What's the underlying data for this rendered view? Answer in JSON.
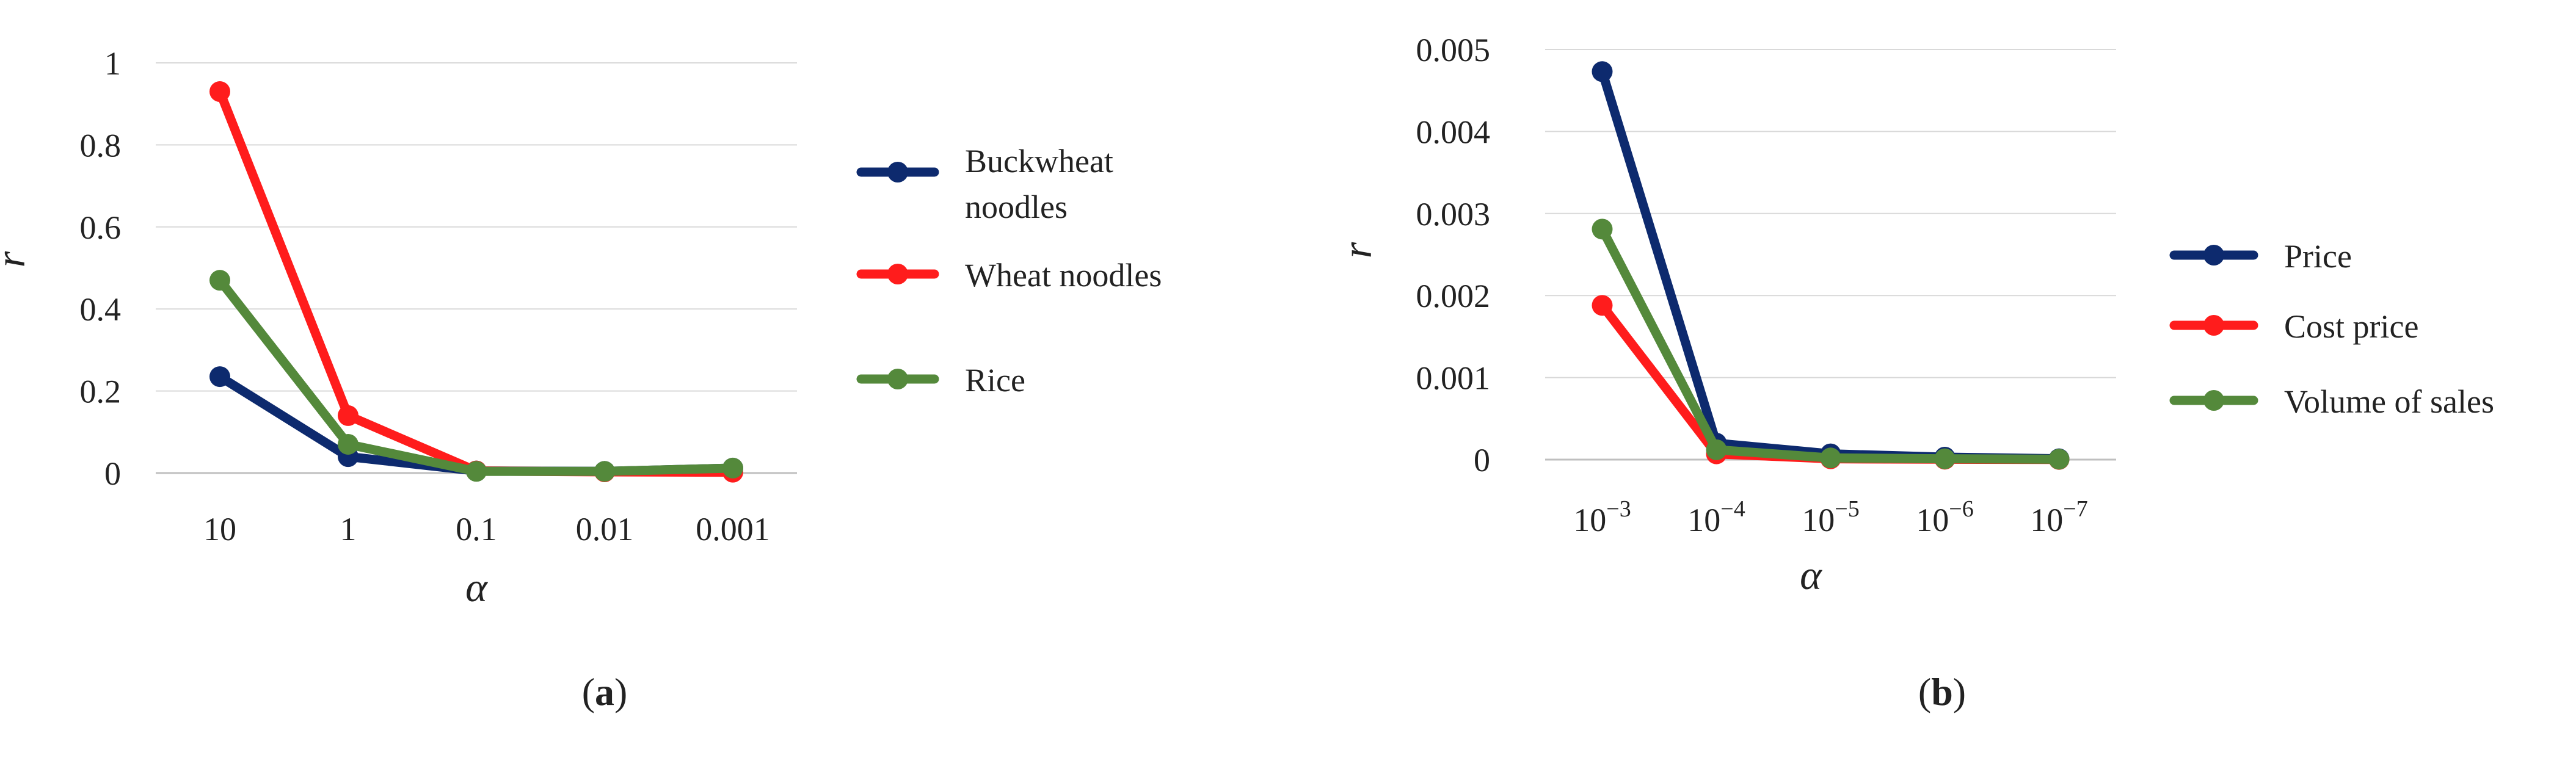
{
  "chart_data": [
    {
      "type": "line",
      "panel_label": "a",
      "categories": [
        "10",
        "1",
        "0.1",
        "0.01",
        "0.001"
      ],
      "series": [
        {
          "name": "Buckwheat noodles",
          "color": "#0d2a6e",
          "values": [
            0.235,
            0.04,
            0.005,
            0.004,
            0.012
          ]
        },
        {
          "name": "Wheat noodles",
          "color": "#ff1c1c",
          "values": [
            0.93,
            0.14,
            0.005,
            0.003,
            0.002
          ]
        },
        {
          "name": "Rice",
          "color": "#54893b",
          "values": [
            0.47,
            0.07,
            0.004,
            0.004,
            0.012
          ]
        }
      ],
      "ylabel": "r",
      "xlabel": "α",
      "ylim": [
        0,
        1
      ],
      "yticks": [
        "0",
        "0.2",
        "0.4",
        "0.6",
        "0.8",
        "1"
      ],
      "grid": true,
      "legend_position": "right"
    },
    {
      "type": "line",
      "panel_label": "b",
      "categories": [
        {
          "base": "10",
          "exp": "−3"
        },
        {
          "base": "10",
          "exp": "−4"
        },
        {
          "base": "10",
          "exp": "−5"
        },
        {
          "base": "10",
          "exp": "−6"
        },
        {
          "base": "10",
          "exp": "−7"
        }
      ],
      "series": [
        {
          "name": "Price",
          "color": "#0d2a6e",
          "values": [
            0.00473,
            0.0002,
            7e-05,
            3e-05,
            1e-05
          ]
        },
        {
          "name": "Cost price",
          "color": "#ff1c1c",
          "values": [
            0.00188,
            7e-05,
            1e-05,
            5e-06,
            2e-06
          ]
        },
        {
          "name": "Volume of sales",
          "color": "#54893b",
          "values": [
            0.00281,
            0.00012,
            2e-05,
            1e-05,
            5e-06
          ]
        }
      ],
      "ylabel": "r",
      "xlabel": "α",
      "ylim": [
        0,
        0.005
      ],
      "yticks": [
        "0",
        "0.001",
        "0.002",
        "0.003",
        "0.004",
        "0.005"
      ],
      "grid": true,
      "legend_position": "right"
    }
  ]
}
